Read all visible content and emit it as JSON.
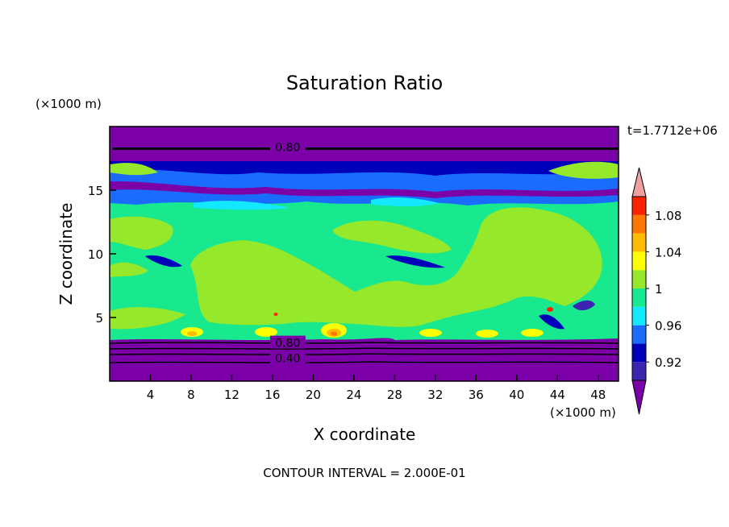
{
  "chart_data": {
    "type": "heatmap",
    "title": "Saturation Ratio",
    "xlabel": "X coordinate",
    "ylabel": "Z coordinate",
    "x_unit": "(×1000 m)",
    "y_unit": "(×1000 m)",
    "time_label": "t=1.7712e+06",
    "footer": "CONTOUR INTERVAL = 2.000E-01",
    "xlim": [
      0,
      50
    ],
    "ylim": [
      0,
      20
    ],
    "x_ticks": [
      4,
      8,
      12,
      16,
      20,
      24,
      28,
      32,
      36,
      40,
      44,
      48
    ],
    "y_ticks": [
      5,
      10,
      15
    ],
    "contour_labels": [
      {
        "text": "0.80",
        "x": 17.5,
        "z": 18.4
      },
      {
        "text": "0.80",
        "x": 17.5,
        "z": 3.0
      },
      {
        "text": "0.40",
        "x": 17.5,
        "z": 1.8
      }
    ],
    "colorbar": {
      "levels": [
        0.92,
        0.96,
        1,
        1.04,
        1.08
      ],
      "tick_labels": [
        "0.92",
        "0.96",
        "1",
        "1.04",
        "1.08"
      ],
      "colors": [
        "#7b00a8",
        "#3b24b0",
        "#0000bb",
        "#1a6cff",
        "#12e8ff",
        "#18e88e",
        "#95e82a",
        "#ffff00",
        "#ffbb00",
        "#ff7700",
        "#ff2200",
        "#f0a0a0"
      ]
    },
    "layers": [
      {
        "z": [
          0,
          3.2
        ],
        "value": "<0.80",
        "color": "#7b00a8"
      },
      {
        "z": [
          3.2,
          4.2
        ],
        "value": "≈1.00",
        "color": "#18e88e"
      },
      {
        "z": [
          4.2,
          13.5
        ],
        "value": "1.00–1.02",
        "color": "#95e82a"
      },
      {
        "z": [
          13.5,
          15.3
        ],
        "value": "0.96–1.00",
        "color": "#18e88e"
      },
      {
        "z": [
          15.3,
          17.2
        ],
        "value": "0.92–0.96",
        "color": "#1a6cff"
      },
      {
        "z": [
          17.2,
          20
        ],
        "value": "<0.80",
        "color": "#7b00a8"
      }
    ]
  }
}
